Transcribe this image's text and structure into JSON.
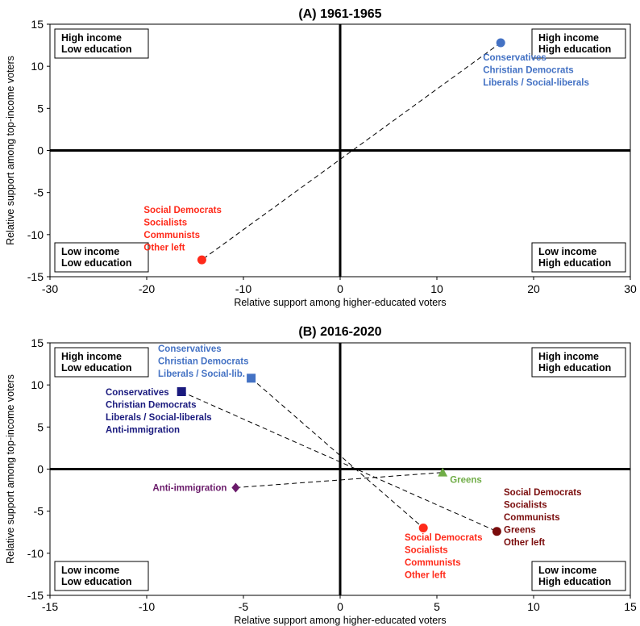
{
  "chart_data": [
    {
      "type": "scatter",
      "title": "(A) 1961-1965",
      "xlabel": "Relative support among higher-educated voters",
      "ylabel": "Relative support among top-income voters",
      "xlim": [
        -30,
        30
      ],
      "ylim": [
        -15,
        15
      ],
      "xticks": [
        -30,
        -20,
        -10,
        0,
        10,
        20,
        30
      ],
      "yticks": [
        15,
        10,
        5,
        0,
        -5,
        -10,
        -15
      ],
      "grid": false,
      "quadrants": [
        {
          "pos": "top-left",
          "lines": [
            "High income",
            "Low education"
          ]
        },
        {
          "pos": "top-right",
          "lines": [
            "High income",
            "High education"
          ]
        },
        {
          "pos": "bottom-left",
          "lines": [
            "Low income",
            "Low education"
          ]
        },
        {
          "pos": "bottom-right",
          "lines": [
            "Low income",
            "High education"
          ]
        }
      ],
      "points": [
        {
          "x": 16.6,
          "y": 12.8,
          "shape": "circle",
          "color": "#4472c4",
          "label": [
            "Conservatives",
            "Christian Democrats",
            "Liberals / Social-liberals"
          ],
          "label_side": "below-left"
        },
        {
          "x": -14.3,
          "y": -13.0,
          "shape": "circle",
          "color": "#ff2a1a",
          "label": [
            "Social Democrats",
            "Socialists",
            "Communists",
            "Other left"
          ],
          "label_side": "above-left"
        }
      ],
      "connectors": [
        [
          0,
          1
        ]
      ]
    },
    {
      "type": "scatter",
      "title": "(B) 2016-2020",
      "xlabel": "Relative support among higher-educated voters",
      "ylabel": "Relative support among top-income voters",
      "xlim": [
        -15,
        15
      ],
      "ylim": [
        -15,
        15
      ],
      "xticks": [
        -15,
        -10,
        -5,
        0,
        5,
        10,
        15
      ],
      "yticks": [
        15,
        10,
        5,
        0,
        -5,
        -10,
        -15
      ],
      "grid": false,
      "quadrants": [
        {
          "pos": "top-left",
          "lines": [
            "High income",
            "Low education"
          ]
        },
        {
          "pos": "top-right",
          "lines": [
            "High income",
            "High education"
          ]
        },
        {
          "pos": "bottom-left",
          "lines": [
            "Low income",
            "Low education"
          ]
        },
        {
          "pos": "bottom-right",
          "lines": [
            "Low income",
            "High education"
          ]
        }
      ],
      "points": [
        {
          "x": -4.6,
          "y": 10.8,
          "shape": "square",
          "color": "#4472c4",
          "label": [
            "Conservatives",
            "Christian Democrats",
            "Liberals / Social-lib."
          ],
          "label_side": "above-left"
        },
        {
          "x": -8.2,
          "y": 9.2,
          "shape": "square",
          "color": "#1a1a7e",
          "label": [
            "Conservatives",
            "Christian Democrats",
            "Liberals / Social-liberals",
            "Anti-immigration"
          ],
          "label_side": "below-left"
        },
        {
          "x": 5.3,
          "y": -0.4,
          "shape": "triangle",
          "color": "#70ad47",
          "label": [
            "Greens"
          ],
          "label_side": "right"
        },
        {
          "x": -5.4,
          "y": -2.2,
          "shape": "diamond",
          "color": "#6a1b6a",
          "label": [
            "Anti-immigration"
          ],
          "label_side": "left"
        },
        {
          "x": 4.3,
          "y": -7.0,
          "shape": "circle",
          "color": "#ff2a1a",
          "label": [
            "Social Democrats",
            "Socialists",
            "Communists",
            "Other left"
          ],
          "label_side": "below-left"
        },
        {
          "x": 8.1,
          "y": -7.4,
          "shape": "circle",
          "color": "#7a0c0c",
          "label": [
            "Social Democrats",
            "Socialists",
            "Communists",
            "Greens",
            "Other left"
          ],
          "label_side": "above-right"
        }
      ],
      "connectors": [
        [
          0,
          4
        ],
        [
          1,
          5
        ],
        [
          3,
          2
        ]
      ]
    }
  ]
}
